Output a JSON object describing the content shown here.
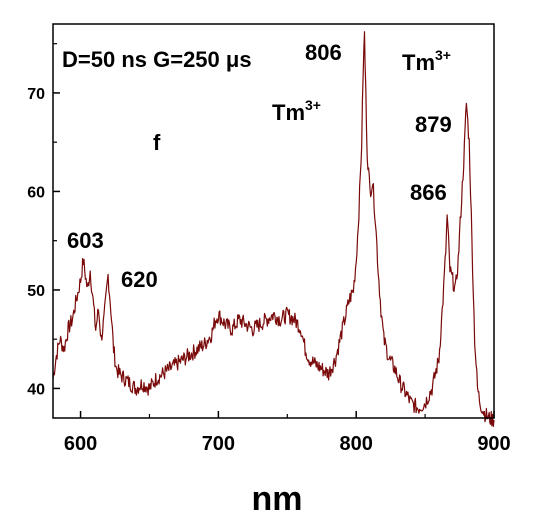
{
  "chart_data": {
    "type": "line",
    "title": "",
    "xlabel": "nm",
    "ylabel": "",
    "xlim": [
      580,
      900
    ],
    "ylim": [
      37,
      77
    ],
    "x_ticks": [
      600,
      700,
      800,
      900
    ],
    "y_ticks": [
      40,
      50,
      60,
      70
    ],
    "x_tick_labels": [
      "600",
      "700",
      "800",
      "900"
    ],
    "y_tick_labels": [
      "40",
      "50",
      "60",
      "70"
    ],
    "grid": false,
    "line_color": "#7a0a0a",
    "series": [
      {
        "x": [
          580,
          582,
          585,
          588,
          591,
          594,
          597,
          600,
          602,
          603,
          605,
          607,
          609,
          611,
          613,
          615,
          617,
          619,
          620,
          622,
          624,
          626,
          628,
          632,
          636,
          640,
          645,
          650,
          655,
          660,
          665,
          670,
          675,
          680,
          685,
          690,
          695,
          698,
          700,
          705,
          710,
          715,
          720,
          725,
          730,
          735,
          740,
          745,
          750,
          755,
          758,
          760,
          763,
          766,
          770,
          775,
          780,
          785,
          790,
          795,
          798,
          800,
          802,
          804,
          805,
          806,
          807,
          808,
          810,
          812,
          814,
          816,
          818,
          820,
          824,
          828,
          832,
          836,
          840,
          845,
          850,
          855,
          860,
          863,
          865,
          866,
          867,
          868,
          870,
          872,
          874,
          876,
          878,
          879,
          880,
          882,
          884,
          886,
          888,
          890,
          893,
          896,
          900
        ],
        "y": [
          41,
          43,
          45,
          44,
          46,
          47,
          49,
          51,
          53,
          52,
          50,
          52,
          49,
          46,
          48,
          45,
          47,
          50,
          51.5,
          48,
          44,
          42,
          41.5,
          41,
          40.5,
          40,
          40.5,
          40,
          41,
          41.5,
          42,
          42.5,
          43,
          43.5,
          44,
          44.5,
          45.5,
          47,
          47.5,
          46.5,
          46,
          47,
          46.5,
          46,
          46.5,
          47,
          47.5,
          47,
          47.5,
          47,
          46.5,
          46,
          44,
          43,
          42.5,
          42,
          41.5,
          43,
          46,
          49,
          50,
          53,
          58,
          65,
          72,
          76,
          70,
          64,
          60,
          61,
          57,
          52,
          48,
          45,
          43,
          42,
          40.5,
          39.5,
          38.5,
          38,
          38.5,
          40,
          43,
          49,
          54,
          57.5,
          55,
          52,
          51,
          50,
          53,
          58,
          63,
          66,
          69,
          65,
          55,
          45,
          40,
          38.5,
          37.5,
          37,
          36.8
        ]
      }
    ],
    "annotations": [
      {
        "text": "D=50 ns G=250 μs",
        "kind": "header"
      },
      {
        "text": "806",
        "x": 806
      },
      {
        "text": "Tm",
        "sup": "3+",
        "kind": "ion-mid"
      },
      {
        "text": "Tm",
        "sup": "3+",
        "kind": "ion-right"
      },
      {
        "text": "879",
        "x": 879
      },
      {
        "text": "866",
        "x": 866
      },
      {
        "text": "f",
        "kind": "panel-letter"
      },
      {
        "text": "603",
        "x": 603
      },
      {
        "text": "620",
        "x": 620
      }
    ]
  }
}
